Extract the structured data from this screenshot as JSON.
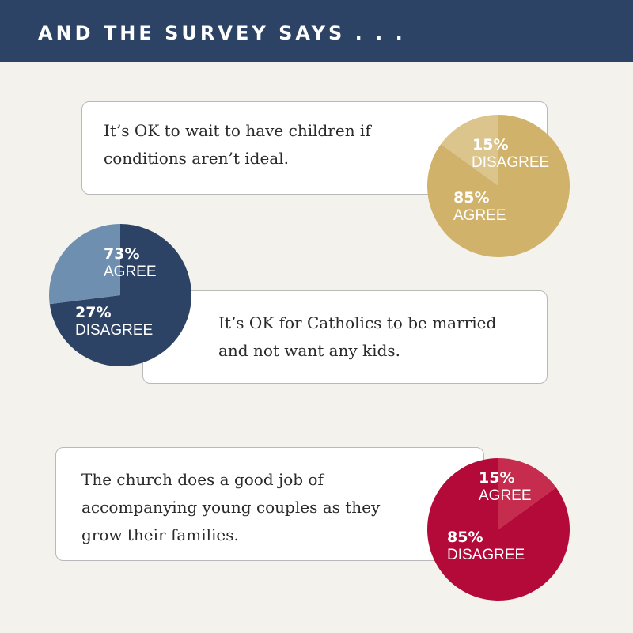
{
  "header": {
    "title": "AND THE SURVEY SAYS . . ."
  },
  "chart_data": [
    {
      "type": "pie",
      "title": "It’s OK to wait to have children if conditions aren’t ideal.",
      "title_lines": [
        "It’s OK to wait to have children if",
        "conditions aren’t ideal."
      ],
      "slices": [
        {
          "label": "DISAGREE",
          "value": 15,
          "display": "15%",
          "color": "#dcc48d"
        },
        {
          "label": "AGREE",
          "value": 85,
          "display": "85%",
          "color": "#d0b26a"
        }
      ]
    },
    {
      "type": "pie",
      "title": "It’s OK for Catholics to be married and not want any kids.",
      "title_lines": [
        "It’s OK for Catholics to be married",
        "and not want any kids."
      ],
      "slices": [
        {
          "label": "AGREE",
          "value": 73,
          "display": "73%",
          "color": "#2c4365"
        },
        {
          "label": "DISAGREE",
          "value": 27,
          "display": "27%",
          "color": "#6f8fb0"
        }
      ]
    },
    {
      "type": "pie",
      "title": "The church does a good job of accompanying young couples as they grow their families.",
      "title_lines": [
        "The church does a good job of",
        "accompanying young couples as they",
        "grow their families."
      ],
      "slices": [
        {
          "label": "AGREE",
          "value": 15,
          "display": "15%",
          "color": "#c52c4d"
        },
        {
          "label": "DISAGREE",
          "value": 85,
          "display": "85%",
          "color": "#b40a39"
        }
      ]
    }
  ]
}
